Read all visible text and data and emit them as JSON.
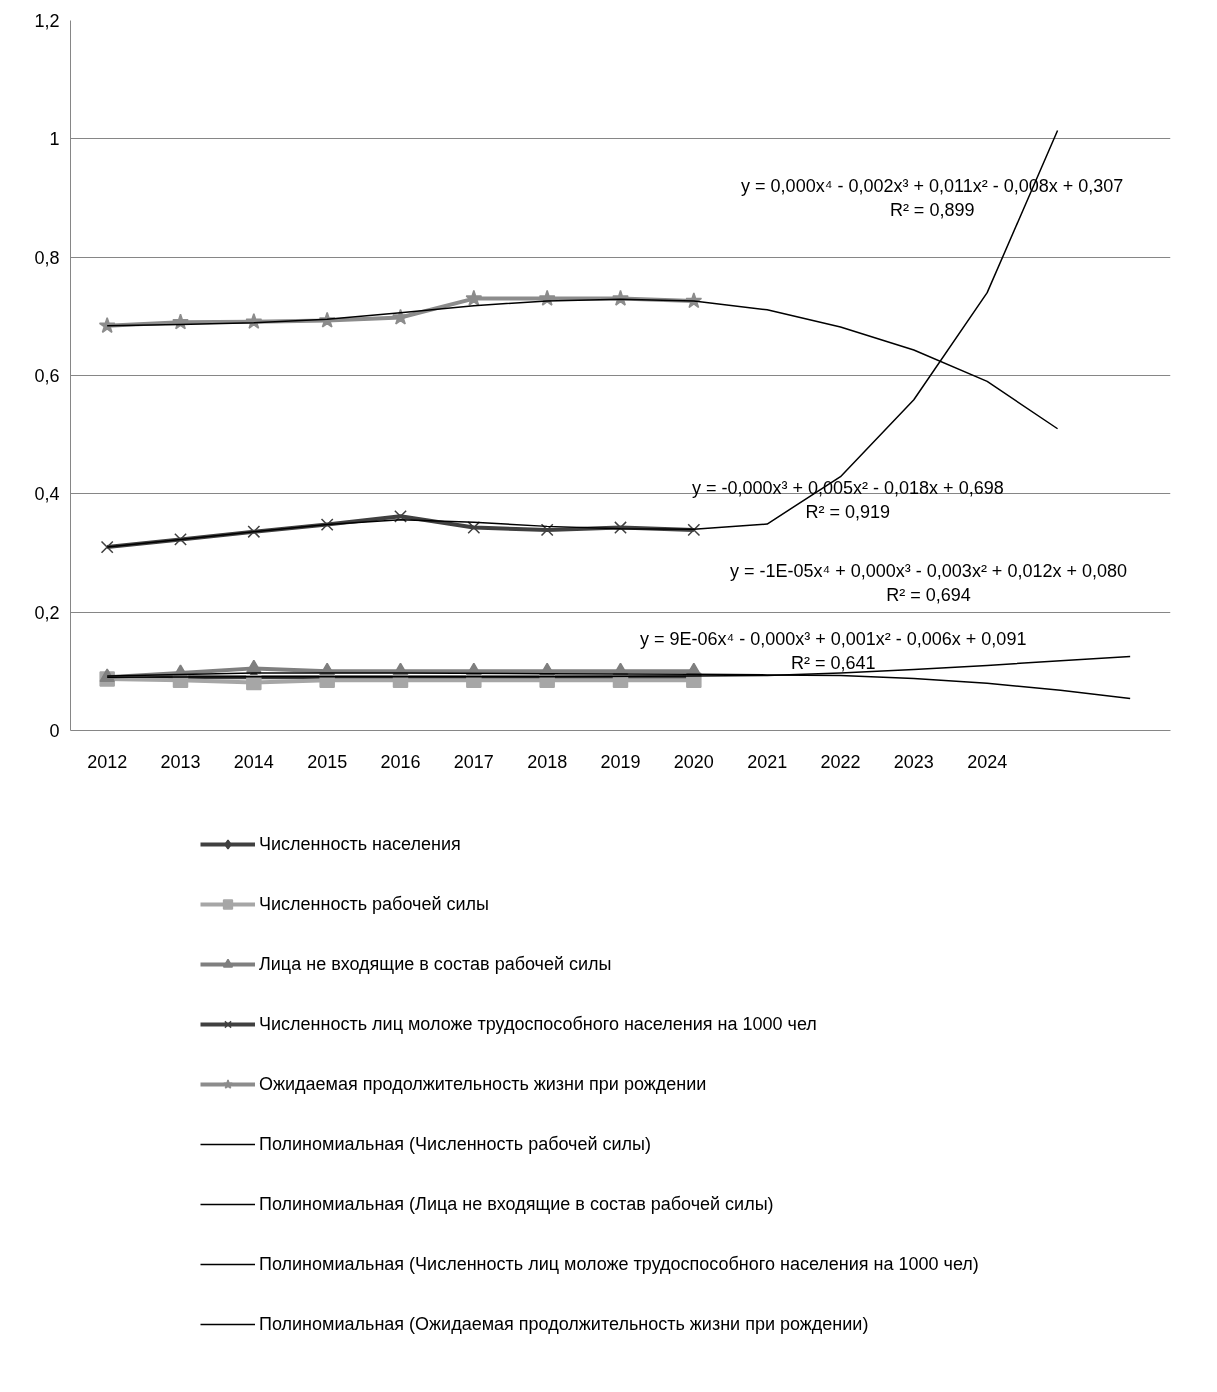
{
  "chart_data": {
    "type": "line",
    "x": [
      2012,
      2013,
      2014,
      2015,
      2016,
      2017,
      2018,
      2019,
      2020
    ],
    "xlim": [
      2011.5,
      2026.5
    ],
    "xticks": [
      2012,
      2013,
      2014,
      2015,
      2016,
      2017,
      2018,
      2019,
      2020,
      2021,
      2022,
      2023,
      2024
    ],
    "ylim": [
      0,
      1.2
    ],
    "yticks": [
      0,
      {
        "value": 0.2,
        "label": "0,2"
      },
      {
        "value": 0.4,
        "label": "0,4"
      },
      {
        "value": 0.6,
        "label": "0,6"
      },
      {
        "value": 0.8,
        "label": "0,8"
      },
      1,
      {
        "value": 1.2,
        "label": "1,2"
      }
    ],
    "grid": "y",
    "legend": "bottom",
    "line_style": "solid",
    "series": [
      {
        "name": "Численность населения",
        "color": "#404040",
        "marker": "diamond",
        "values": [
          0.09,
          0.09,
          0.09,
          0.09,
          0.09,
          0.09,
          0.09,
          0.09,
          0.09
        ]
      },
      {
        "name": "Численность рабочей силы",
        "color": "#a6a6a6",
        "marker": "square",
        "values": [
          0.087,
          0.085,
          0.081,
          0.085,
          0.085,
          0.085,
          0.085,
          0.085,
          0.085
        ]
      },
      {
        "name": "Лица не входящие в состав рабочей силы",
        "color": "#7f7f7f",
        "marker": "triangle",
        "values": [
          0.09,
          0.097,
          0.105,
          0.1,
          0.1,
          0.1,
          0.1,
          0.1,
          0.1
        ]
      },
      {
        "name": "Численность лиц моложе трудоспособного населения на 1000 чел",
        "color": "#404040",
        "marker": "cross",
        "values": [
          0.31,
          0.323,
          0.336,
          0.348,
          0.362,
          0.343,
          0.339,
          0.343,
          0.339
        ]
      },
      {
        "name": "Ожидаемая продолжительность жизни при рождении",
        "color": "#8c8c8c",
        "marker": "star",
        "values": [
          0.684,
          0.69,
          0.691,
          0.693,
          0.698,
          0.73,
          0.73,
          0.73,
          0.726
        ]
      },
      {
        "name": "Полиномиальная (Численность рабочей силы)",
        "color": "#000000",
        "marker": "none",
        "x": [
          2012,
          2014,
          2016,
          2018,
          2020,
          2021,
          2022,
          2023,
          2024,
          2025,
          2025.95
        ],
        "values": [
          0.09,
          0.091,
          0.091,
          0.091,
          0.092,
          0.093,
          0.097,
          0.103,
          0.11,
          0.118,
          0.125
        ]
      },
      {
        "name": "Полиномиальная (Лица не входящие в состав рабочей силы)",
        "color": "#000000",
        "marker": "none",
        "x": [
          2012,
          2014,
          2016,
          2018,
          2020,
          2021,
          2022,
          2023,
          2024,
          2025,
          2025.95
        ],
        "values": [
          0.092,
          0.097,
          0.097,
          0.096,
          0.095,
          0.094,
          0.093,
          0.088,
          0.08,
          0.068,
          0.054
        ]
      },
      {
        "name": "Полиномиальная (Численность лиц моложе трудоспособного населения на 1000 чел)",
        "color": "#000000",
        "marker": "none",
        "x": [
          2012,
          2013,
          2014,
          2015,
          2016,
          2017,
          2018,
          2019,
          2020,
          2021,
          2022,
          2023,
          2024,
          2024.96
        ],
        "values": [
          0.31,
          0.323,
          0.336,
          0.348,
          0.356,
          0.352,
          0.345,
          0.341,
          0.34,
          0.349,
          0.429,
          0.559,
          0.74,
          1.014
        ]
      },
      {
        "name": "Полиномиальная (Ожидаемая продолжительность жизни при рождении)",
        "color": "#000000",
        "marker": "none",
        "x": [
          2012,
          2013,
          2014,
          2015,
          2016,
          2017,
          2018,
          2019,
          2020,
          2021,
          2022,
          2023,
          2024,
          2024.96
        ],
        "values": [
          0.684,
          0.686,
          0.689,
          0.695,
          0.706,
          0.718,
          0.726,
          0.729,
          0.726,
          0.711,
          0.682,
          0.643,
          0.59,
          0.51
        ]
      }
    ],
    "annotations": [
      "y = 0,000x⁴ - 0,002x³ + 0,011x² - 0,008x + 0,307\nR² = 0,899",
      "y = -0,000x³ + 0,005x² - 0,018x + 0,698\nR² = 0,919",
      "y = -1E-05x⁴ + 0,000x³ - 0,003x² + 0,012x + 0,080\nR² = 0,694",
      "y = 9E-06x⁴ - 0,000x³ + 0,001x² - 0,006x + 0,091\nR² = 0,641"
    ]
  }
}
